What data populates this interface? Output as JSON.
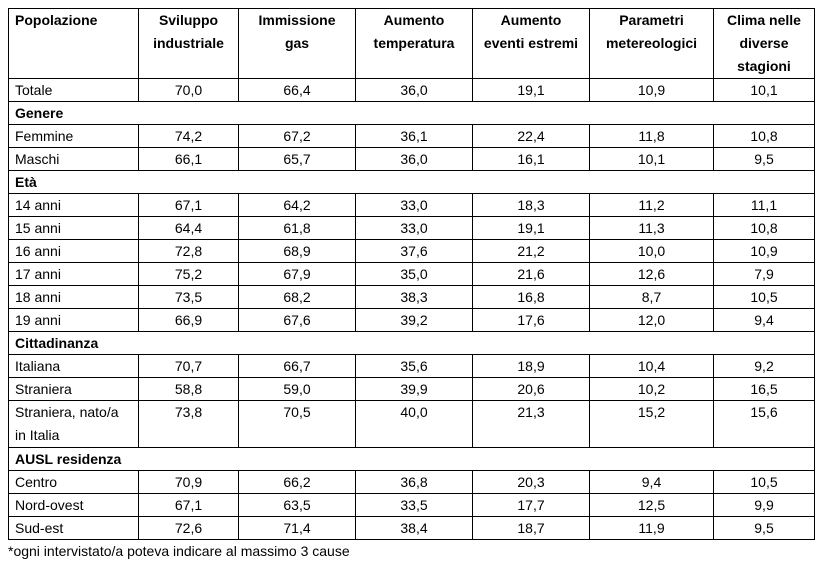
{
  "table": {
    "headers": [
      "Popolazione",
      "Sviluppo industriale",
      "Immissione gas",
      "Aumento temperatura",
      "Aumento eventi estremi",
      "Parametri metereologici",
      "Clima nelle diverse stagioni"
    ],
    "rows": [
      {
        "type": "data",
        "label": "Totale",
        "values": [
          "70,0",
          "66,4",
          "36,0",
          "19,1",
          "10,9",
          "10,1"
        ]
      },
      {
        "type": "section",
        "label": "Genere"
      },
      {
        "type": "data",
        "label": "Femmine",
        "values": [
          "74,2",
          "67,2",
          "36,1",
          "22,4",
          "11,8",
          "10,8"
        ]
      },
      {
        "type": "data",
        "label": "Maschi",
        "values": [
          "66,1",
          "65,7",
          "36,0",
          "16,1",
          "10,1",
          "9,5"
        ]
      },
      {
        "type": "section",
        "label": "Età"
      },
      {
        "type": "data",
        "label": "14 anni",
        "values": [
          "67,1",
          "64,2",
          "33,0",
          "18,3",
          "11,2",
          "11,1"
        ]
      },
      {
        "type": "data",
        "label": "15 anni",
        "values": [
          "64,4",
          "61,8",
          "33,0",
          "19,1",
          "11,3",
          "10,8"
        ]
      },
      {
        "type": "data",
        "label": "16 anni",
        "values": [
          "72,8",
          "68,9",
          "37,6",
          "21,2",
          "10,0",
          "10,9"
        ]
      },
      {
        "type": "data",
        "label": "17 anni",
        "values": [
          "75,2",
          "67,9",
          "35,0",
          "21,6",
          "12,6",
          "7,9"
        ]
      },
      {
        "type": "data",
        "label": "18 anni",
        "values": [
          "73,5",
          "68,2",
          "38,3",
          "16,8",
          "8,7",
          "10,5"
        ]
      },
      {
        "type": "data",
        "label": "19 anni",
        "values": [
          "66,9",
          "67,6",
          "39,2",
          "17,6",
          "12,0",
          "9,4"
        ]
      },
      {
        "type": "section",
        "label": "Cittadinanza"
      },
      {
        "type": "data",
        "label": "Italiana",
        "values": [
          "70,7",
          "66,7",
          "35,6",
          "18,9",
          "10,4",
          "9,2"
        ]
      },
      {
        "type": "data",
        "label": "Straniera",
        "values": [
          "58,8",
          "59,0",
          "39,9",
          "20,6",
          "10,2",
          "16,5"
        ]
      },
      {
        "type": "data",
        "label": "Straniera, nato/a in Italia",
        "tall": true,
        "values": [
          "73,8",
          "70,5",
          "40,0",
          "21,3",
          "15,2",
          "15,6"
        ]
      },
      {
        "type": "section",
        "label": "AUSL residenza"
      },
      {
        "type": "data",
        "label": "Centro",
        "values": [
          "70,9",
          "66,2",
          "36,8",
          "20,3",
          "9,4",
          "10,5"
        ]
      },
      {
        "type": "data",
        "label": "Nord-ovest",
        "values": [
          "67,1",
          "63,5",
          "33,5",
          "17,7",
          "12,5",
          "9,9"
        ]
      },
      {
        "type": "data",
        "label": "Sud-est",
        "values": [
          "72,6",
          "71,4",
          "38,4",
          "18,7",
          "11,9",
          "9,5"
        ]
      }
    ]
  },
  "footnote": "*ogni intervistato/a poteva indicare al massimo 3 cause"
}
